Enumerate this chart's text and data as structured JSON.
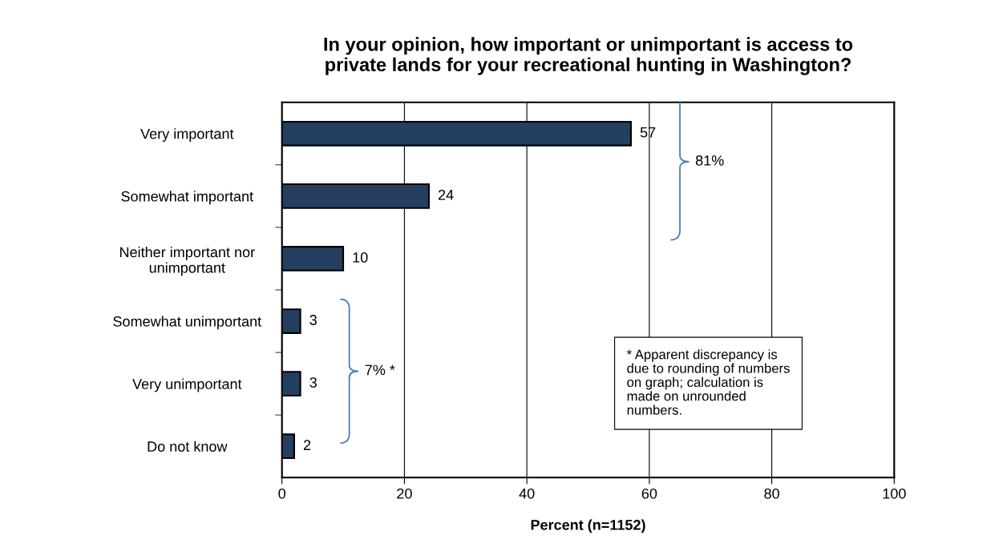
{
  "chart_data": {
    "type": "bar",
    "orientation": "horizontal",
    "title": "In your opinion, how important or unimportant is access to\nprivate lands for your recreational hunting in Washington?",
    "xlabel": "Percent (n=1152)",
    "categories": [
      "Very important",
      "Somewhat important",
      "Neither important nor\nunimportant",
      "Somewhat unimportant",
      "Very unimportant",
      "Do not know"
    ],
    "values": [
      57,
      24,
      10,
      3,
      3,
      2
    ],
    "color": "#243f60",
    "data_labels": true,
    "xlim": [
      0,
      100
    ],
    "xticks": [
      0,
      20,
      40,
      60,
      80,
      100
    ],
    "grid": "x",
    "annotations": [
      "81%",
      "7% *",
      "* Apparent discrepancy is\ndue to rounding of numbers\non graph; calculation is\nmade on unrounded\nnumbers."
    ]
  }
}
